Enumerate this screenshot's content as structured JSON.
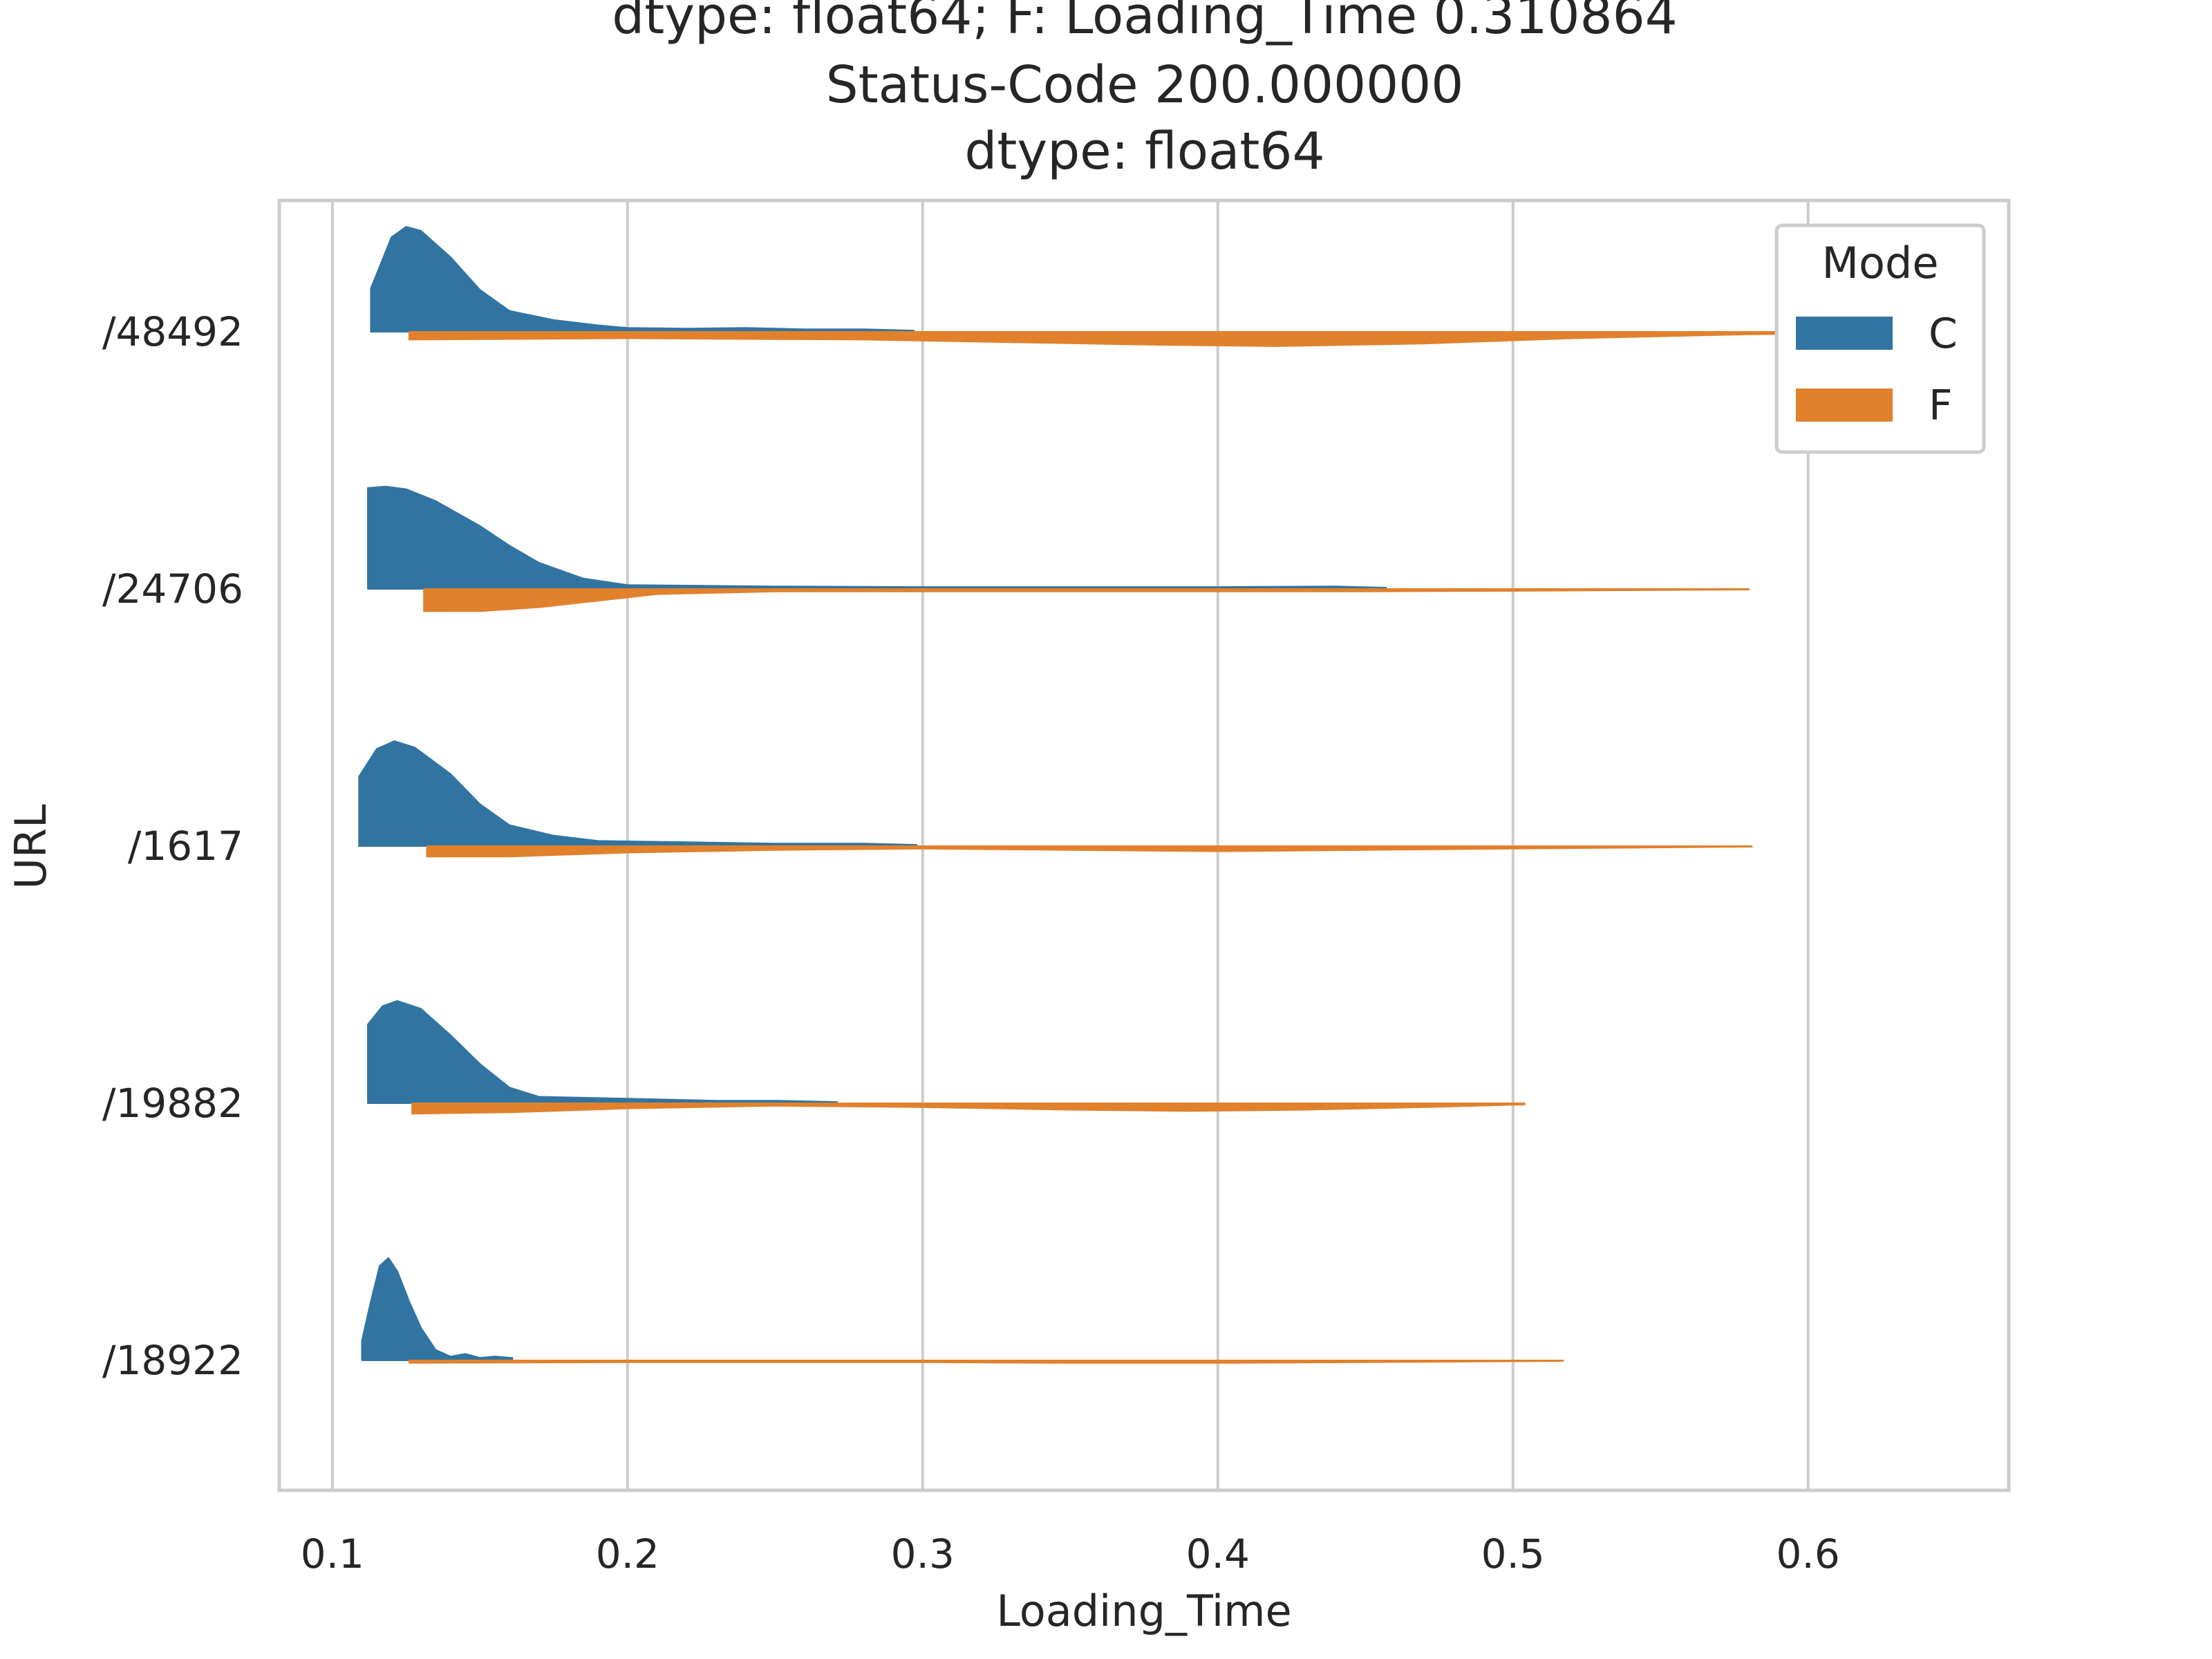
{
  "chart_data": {
    "type": "violin",
    "orientation": "horizontal",
    "split": true,
    "title_lines": [
      "dtype: float64; F: Loading_Time      0.310864",
      "Status-Code     200.000000",
      "dtype: float64"
    ],
    "xlabel": "Loading_Time",
    "ylabel": "URL",
    "xlim": [
      0.082,
      0.668
    ],
    "x_ticks": [
      0.1,
      0.2,
      0.3,
      0.4,
      0.5,
      0.6
    ],
    "x_tick_labels": [
      "0.1",
      "0.2",
      "0.3",
      "0.4",
      "0.5",
      "0.6"
    ],
    "categories": [
      "/48492",
      "/24706",
      "/1617",
      "/19882",
      "/18922"
    ],
    "grid": "vertical",
    "legend": {
      "title": "Mode",
      "placement": "top-right",
      "entries": [
        {
          "label": "C",
          "color": "#3274a1"
        },
        {
          "label": "F",
          "color": "#e1812c"
        }
      ]
    },
    "series": [
      {
        "name": "C",
        "color": "#3274a1",
        "side": "upper",
        "violins": [
          {
            "category": "/48492",
            "min": 0.113,
            "max": 0.297,
            "profile": [
              [
                0.113,
                0.33
              ],
              [
                0.12,
                0.72
              ],
              [
                0.125,
                0.8
              ],
              [
                0.13,
                0.77
              ],
              [
                0.14,
                0.57
              ],
              [
                0.15,
                0.32
              ],
              [
                0.16,
                0.16
              ],
              [
                0.175,
                0.09
              ],
              [
                0.19,
                0.05
              ],
              [
                0.2,
                0.03
              ],
              [
                0.22,
                0.025
              ],
              [
                0.24,
                0.03
              ],
              [
                0.26,
                0.02
              ],
              [
                0.28,
                0.02
              ],
              [
                0.297,
                0.01
              ]
            ]
          },
          {
            "category": "/24706",
            "min": 0.112,
            "max": 0.457,
            "profile": [
              [
                0.112,
                0.77
              ],
              [
                0.118,
                0.78
              ],
              [
                0.125,
                0.76
              ],
              [
                0.135,
                0.67
              ],
              [
                0.15,
                0.48
              ],
              [
                0.16,
                0.33
              ],
              [
                0.17,
                0.2
              ],
              [
                0.185,
                0.08
              ],
              [
                0.2,
                0.03
              ],
              [
                0.25,
                0.02
              ],
              [
                0.3,
                0.015
              ],
              [
                0.35,
                0.015
              ],
              [
                0.4,
                0.015
              ],
              [
                0.44,
                0.02
              ],
              [
                0.457,
                0.01
              ]
            ]
          },
          {
            "category": "/1617",
            "min": 0.109,
            "max": 0.298,
            "profile": [
              [
                0.109,
                0.53
              ],
              [
                0.115,
                0.74
              ],
              [
                0.121,
                0.8
              ],
              [
                0.128,
                0.75
              ],
              [
                0.14,
                0.55
              ],
              [
                0.15,
                0.32
              ],
              [
                0.16,
                0.16
              ],
              [
                0.175,
                0.08
              ],
              [
                0.19,
                0.04
              ],
              [
                0.22,
                0.03
              ],
              [
                0.25,
                0.02
              ],
              [
                0.28,
                0.02
              ],
              [
                0.298,
                0.01
              ]
            ]
          },
          {
            "category": "/19882",
            "min": 0.112,
            "max": 0.271,
            "profile": [
              [
                0.112,
                0.6
              ],
              [
                0.117,
                0.74
              ],
              [
                0.122,
                0.78
              ],
              [
                0.13,
                0.72
              ],
              [
                0.14,
                0.52
              ],
              [
                0.15,
                0.3
              ],
              [
                0.16,
                0.12
              ],
              [
                0.17,
                0.05
              ],
              [
                0.19,
                0.04
              ],
              [
                0.21,
                0.03
              ],
              [
                0.23,
                0.02
              ],
              [
                0.25,
                0.02
              ],
              [
                0.271,
                0.01
              ]
            ]
          },
          {
            "category": "/18922",
            "min": 0.11,
            "max": 0.161,
            "profile": [
              [
                0.11,
                0.15
              ],
              [
                0.113,
                0.45
              ],
              [
                0.116,
                0.72
              ],
              [
                0.119,
                0.78
              ],
              [
                0.122,
                0.68
              ],
              [
                0.126,
                0.45
              ],
              [
                0.13,
                0.25
              ],
              [
                0.135,
                0.08
              ],
              [
                0.14,
                0.03
              ],
              [
                0.145,
                0.05
              ],
              [
                0.15,
                0.02
              ],
              [
                0.155,
                0.03
              ],
              [
                0.161,
                0.02
              ]
            ]
          }
        ]
      },
      {
        "name": "F",
        "color": "#e1812c",
        "side": "lower",
        "violins": [
          {
            "category": "/48492",
            "min": 0.126,
            "max": 0.655,
            "profile": [
              [
                0.126,
                0.06
              ],
              [
                0.2,
                0.05
              ],
              [
                0.28,
                0.06
              ],
              [
                0.33,
                0.08
              ],
              [
                0.38,
                0.1
              ],
              [
                0.42,
                0.11
              ],
              [
                0.47,
                0.09
              ],
              [
                0.52,
                0.05
              ],
              [
                0.58,
                0.02
              ],
              [
                0.655,
                0.005
              ]
            ]
          },
          {
            "category": "/24706",
            "min": 0.131,
            "max": 0.58,
            "profile": [
              [
                0.131,
                0.17
              ],
              [
                0.15,
                0.17
              ],
              [
                0.17,
                0.14
              ],
              [
                0.19,
                0.09
              ],
              [
                0.21,
                0.04
              ],
              [
                0.25,
                0.02
              ],
              [
                0.3,
                0.02
              ],
              [
                0.35,
                0.02
              ],
              [
                0.4,
                0.02
              ],
              [
                0.45,
                0.02
              ],
              [
                0.5,
                0.015
              ],
              [
                0.58,
                0.005
              ]
            ]
          },
          {
            "category": "/1617",
            "min": 0.132,
            "max": 0.581,
            "profile": [
              [
                0.132,
                0.08
              ],
              [
                0.16,
                0.08
              ],
              [
                0.2,
                0.05
              ],
              [
                0.25,
                0.03
              ],
              [
                0.3,
                0.02
              ],
              [
                0.35,
                0.03
              ],
              [
                0.4,
                0.04
              ],
              [
                0.45,
                0.03
              ],
              [
                0.5,
                0.02
              ],
              [
                0.581,
                0.005
              ]
            ]
          },
          {
            "category": "/19882",
            "min": 0.127,
            "max": 0.504,
            "profile": [
              [
                0.127,
                0.08
              ],
              [
                0.16,
                0.07
              ],
              [
                0.2,
                0.04
              ],
              [
                0.25,
                0.02
              ],
              [
                0.3,
                0.03
              ],
              [
                0.35,
                0.05
              ],
              [
                0.39,
                0.06
              ],
              [
                0.43,
                0.05
              ],
              [
                0.47,
                0.03
              ],
              [
                0.504,
                0.01
              ]
            ]
          },
          {
            "category": "/18922",
            "min": 0.126,
            "max": 0.517,
            "profile": [
              [
                0.126,
                0.02
              ],
              [
                0.2,
                0.015
              ],
              [
                0.3,
                0.015
              ],
              [
                0.35,
                0.02
              ],
              [
                0.4,
                0.02
              ],
              [
                0.45,
                0.015
              ],
              [
                0.517,
                0.005
              ]
            ]
          }
        ]
      }
    ]
  }
}
